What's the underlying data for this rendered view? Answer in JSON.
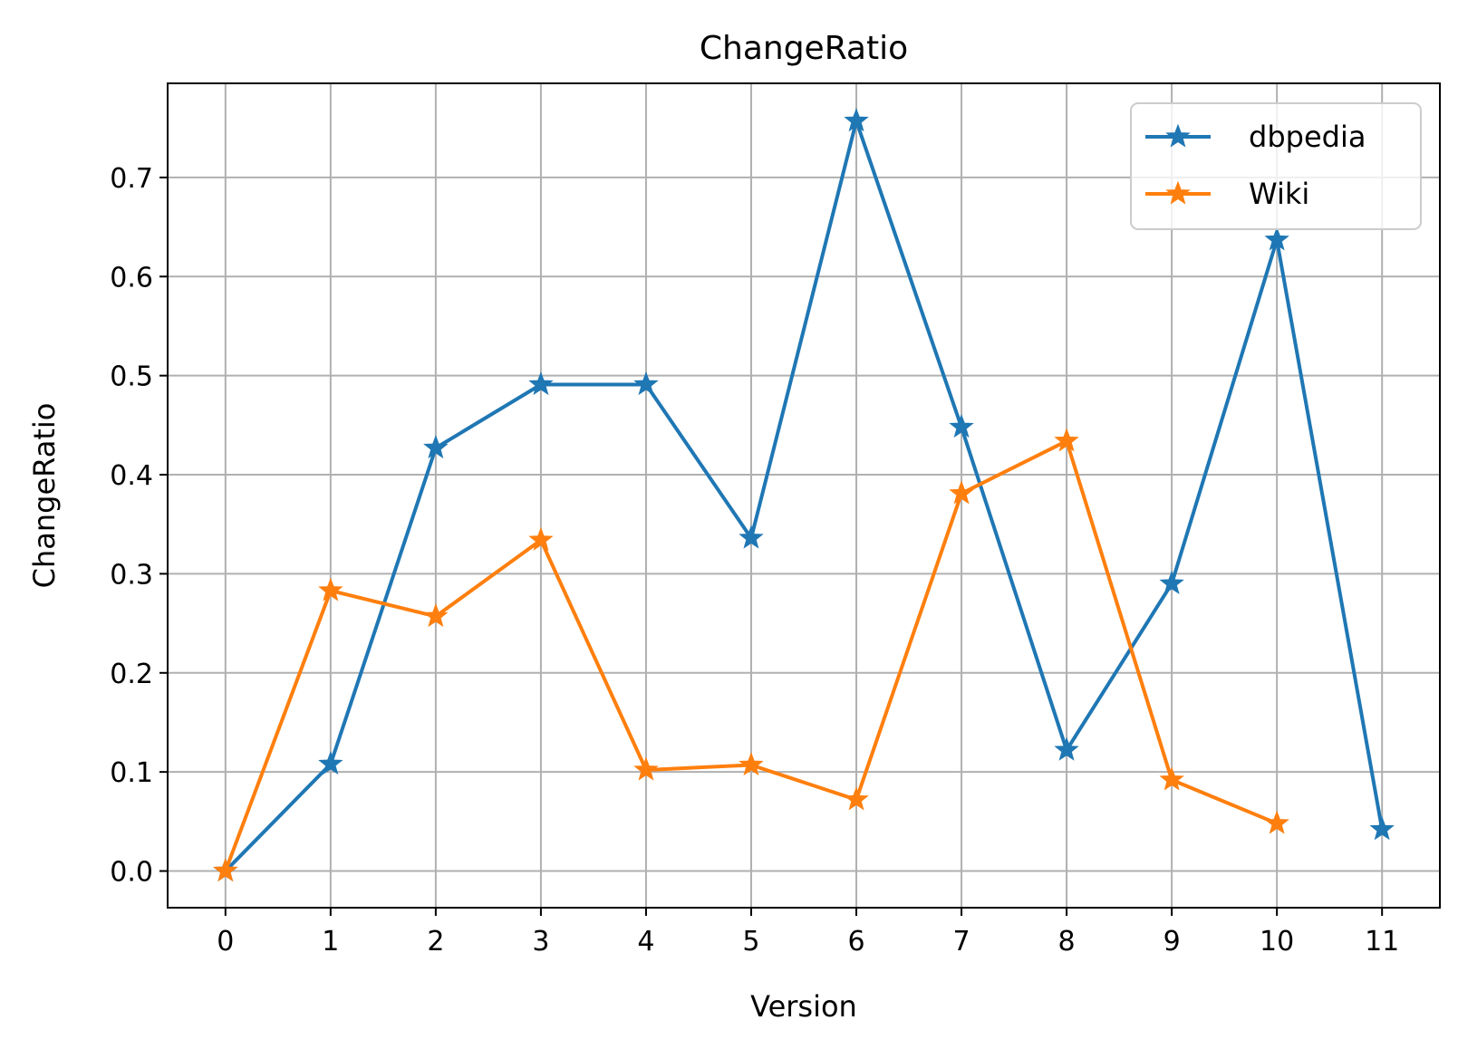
{
  "chart_data": {
    "type": "line",
    "title": "ChangeRatio",
    "xlabel": "Version",
    "ylabel": "ChangeRatio",
    "x": [
      0,
      1,
      2,
      3,
      4,
      5,
      6,
      7,
      8,
      9,
      10,
      11
    ],
    "xticks": [
      "0",
      "1",
      "2",
      "3",
      "4",
      "5",
      "6",
      "7",
      "8",
      "9",
      "10",
      "11"
    ],
    "yticks": [
      "0.0",
      "0.1",
      "0.2",
      "0.3",
      "0.4",
      "0.5",
      "0.6",
      "0.7"
    ],
    "xlim": [
      -0.55,
      11.55
    ],
    "ylim": [
      -0.037,
      0.795
    ],
    "grid": true,
    "legend_position": "top-right",
    "marker": "star",
    "series": [
      {
        "name": "dbpedia",
        "color": "#1f77b4",
        "x": [
          0,
          1,
          2,
          3,
          4,
          5,
          6,
          7,
          8,
          9,
          10,
          11
        ],
        "values": [
          0.0,
          0.108,
          0.427,
          0.491,
          0.491,
          0.336,
          0.757,
          0.448,
          0.122,
          0.29,
          0.637,
          0.042
        ]
      },
      {
        "name": "Wiki",
        "color": "#ff7f0e",
        "x": [
          0,
          1,
          2,
          3,
          4,
          5,
          6,
          7,
          8,
          9,
          10
        ],
        "values": [
          0.0,
          0.283,
          0.257,
          0.334,
          0.102,
          0.107,
          0.072,
          0.381,
          0.434,
          0.092,
          0.048
        ]
      }
    ]
  }
}
